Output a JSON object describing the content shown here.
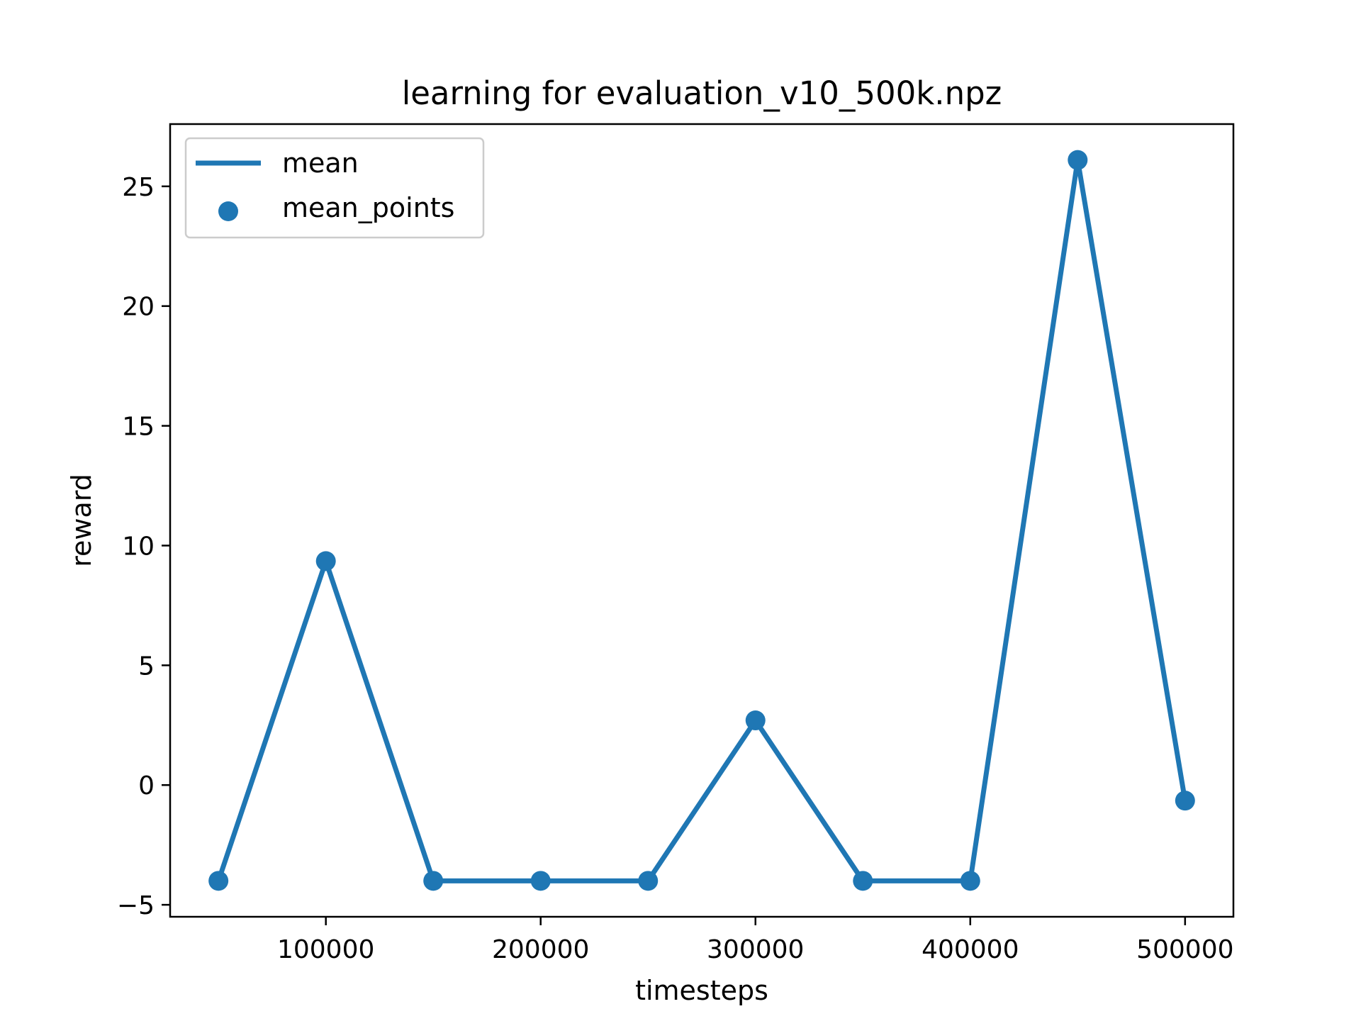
{
  "colors": {
    "series": "#1f77b4",
    "axis": "#000000",
    "legend_border": "#cccccc",
    "background": "#ffffff"
  },
  "chart_data": {
    "type": "line",
    "title": "learning for evaluation_v10_500k.npz",
    "xlabel": "timesteps",
    "ylabel": "reward",
    "xlim": [
      27500,
      522500
    ],
    "ylim": [
      -5.5,
      27.6
    ],
    "xticks": [
      100000,
      200000,
      300000,
      400000,
      500000
    ],
    "xtick_labels": [
      "100000",
      "200000",
      "300000",
      "400000",
      "500000"
    ],
    "yticks": [
      -5,
      0,
      5,
      10,
      15,
      20,
      25
    ],
    "ytick_labels": [
      "−5",
      "0",
      "5",
      "10",
      "15",
      "20",
      "25"
    ],
    "grid": false,
    "legend": {
      "position": "top-left",
      "entries": [
        {
          "label": "mean",
          "kind": "line"
        },
        {
          "label": "mean_points",
          "kind": "marker"
        }
      ]
    },
    "series": [
      {
        "name": "mean",
        "x": [
          50000,
          100000,
          150000,
          200000,
          250000,
          300000,
          350000,
          400000,
          450000,
          500000
        ],
        "y": [
          -4.0,
          9.35,
          -4.0,
          -4.0,
          -4.0,
          2.7,
          -4.0,
          -4.0,
          26.1,
          -0.65
        ]
      }
    ]
  }
}
